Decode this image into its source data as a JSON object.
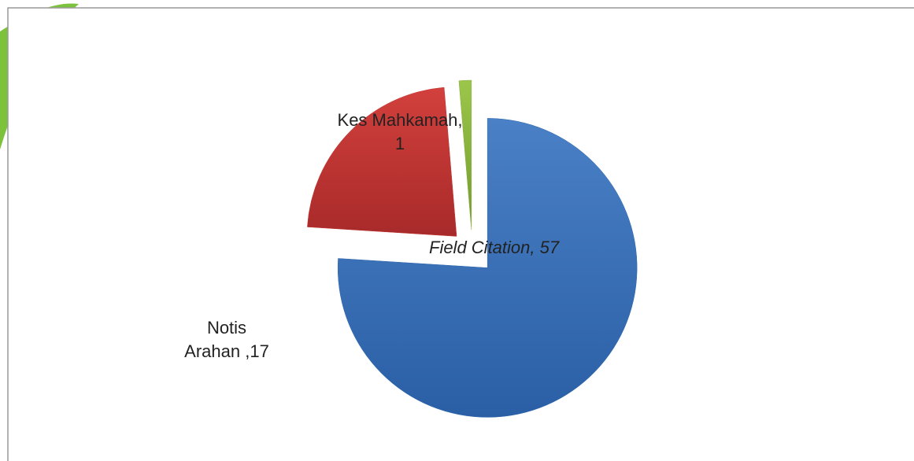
{
  "chart_data": {
    "type": "pie",
    "slice_labels": [
      [
        "Field  Citation, 57"
      ],
      [
        "Notis",
        "Arahan ,17"
      ],
      [
        "Kes Mahkamah,",
        "1"
      ]
    ],
    "values": [
      57,
      17,
      1
    ],
    "colors": [
      "#2f67ae",
      "#bf3532",
      "#86ad3c"
    ],
    "explode": true
  }
}
